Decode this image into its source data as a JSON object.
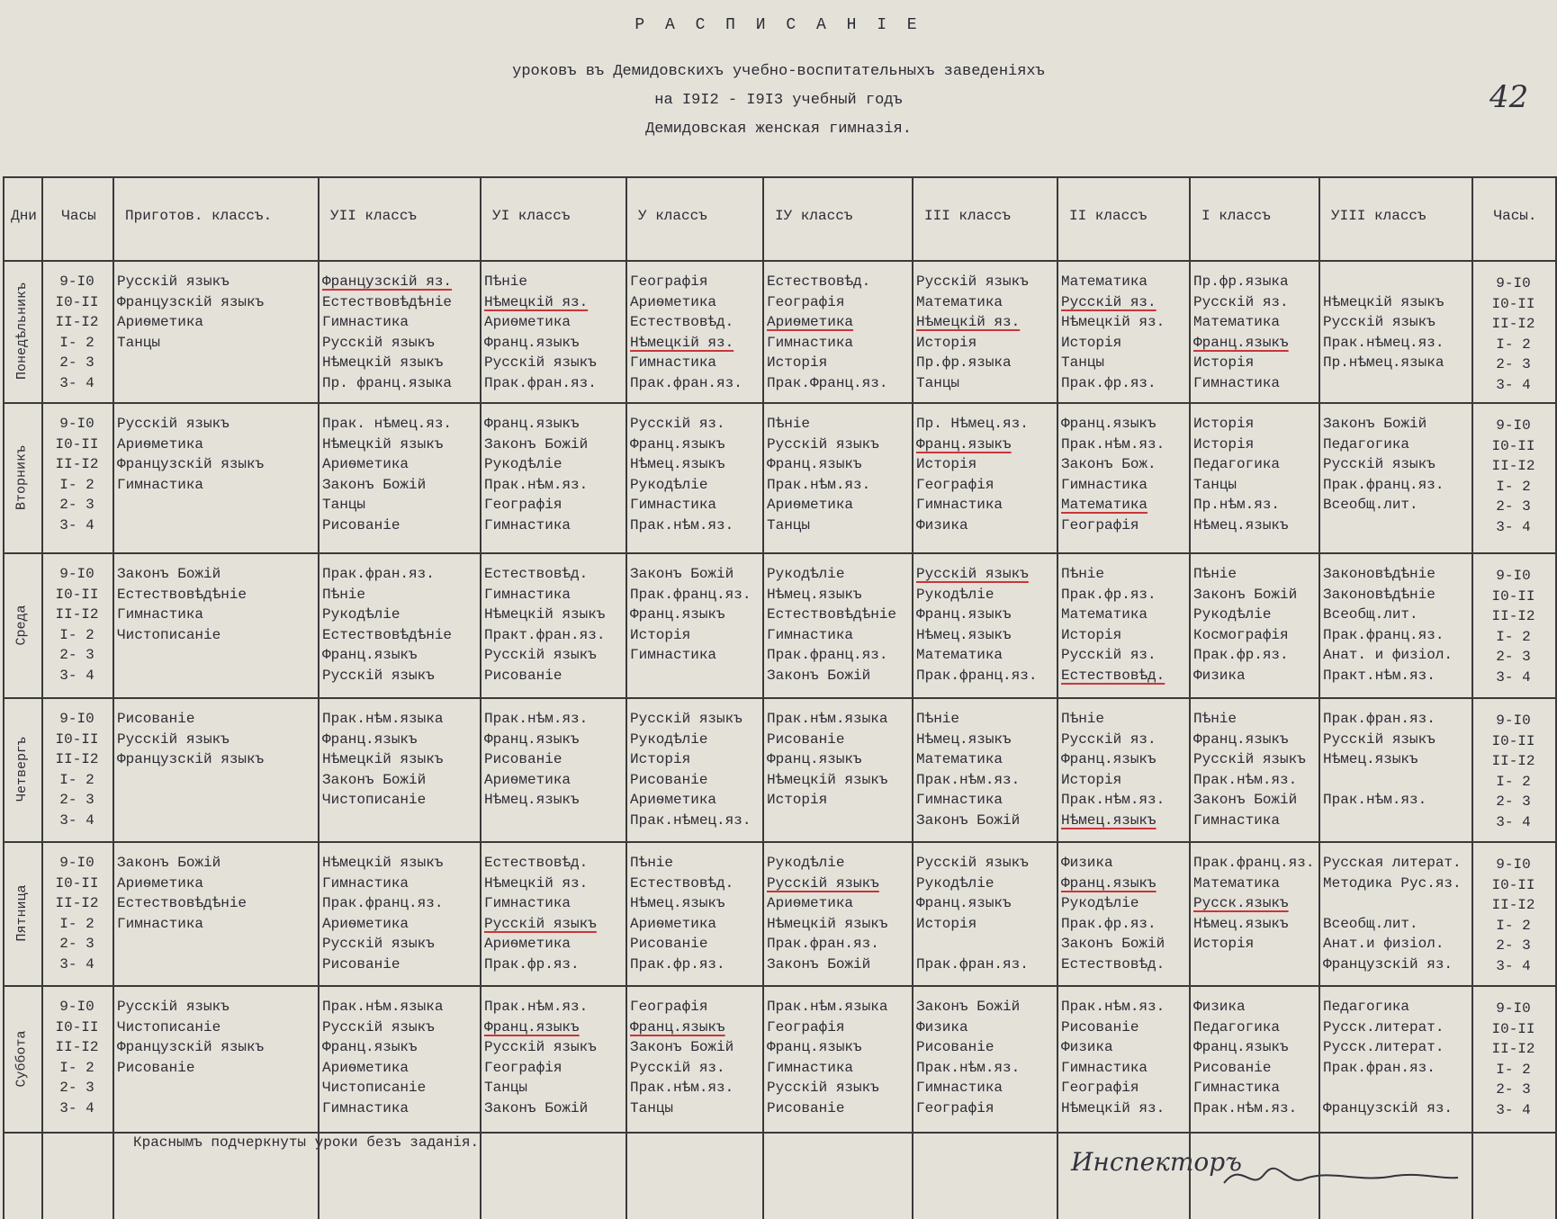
{
  "header": {
    "title": "Р А С П И С А Н І Е",
    "line1": "уроковъ въ Демидовскихъ учебно-воспитательныхъ заведеніяхъ",
    "line2": "на I9I2 - I9I3 учебный годъ",
    "line3": "Демидовская женская гимназія.",
    "page_number": "42"
  },
  "table": {
    "columns": [
      "Дни",
      "Часы",
      "Приготов. классъ.",
      "УII классъ",
      "УI классъ",
      "У классъ",
      "IУ классъ",
      "III классъ",
      "II классъ",
      "I классъ",
      "УIII классъ",
      "Часы."
    ],
    "rows": [
      {
        "day": "Понедѣльникъ",
        "hours": [
          "9-I0",
          "I0-II",
          "II-I2",
          "I- 2",
          "2- 3",
          "3- 4"
        ],
        "cells": [
          [
            "Русскій языкъ",
            "Французскій языкъ",
            "Ариѳметика",
            "Танцы"
          ],
          [
            "Французскій яз.",
            "Естествовѣдѣніе",
            "Гимнастика",
            "Русскій языкъ",
            "Нѣмецкій языкъ",
            "Пр. франц.языка"
          ],
          [
            "Пѣніе",
            "Нѣмецкій яз.",
            "Ариѳметика",
            "Франц.языкъ",
            "Русскій языкъ",
            "Прак.фран.яз."
          ],
          [
            "Географія",
            "Ариѳметика",
            "Естествовѣд.",
            "Нѣмецкій яз.",
            "Гимнастика",
            "Прак.фран.яз."
          ],
          [
            "Естествовѣд.",
            "Географія",
            "Ариѳметика",
            "Гимнастика",
            "Исторія",
            "Прак.Франц.яз."
          ],
          [
            "Русскій языкъ",
            "Математика",
            "Нѣмецкій яз.",
            "Исторія",
            "Пр.фр.языка",
            "Танцы"
          ],
          [
            "Математика",
            "Русскій яз.",
            "Нѣмецкій яз.",
            "Исторія",
            "Танцы",
            "Прак.фр.яз."
          ],
          [
            "Пр.фр.языка",
            "Русскій яз.",
            "Математика",
            "Франц.языкъ",
            "Исторія",
            "Гимнастика"
          ],
          [
            null,
            "Нѣмецкій языкъ",
            "Русскій языкъ",
            "Прак.нѣмец.яз.",
            "Пр.нѣмец.языка"
          ]
        ],
        "underlined": [
          [
            1,
            0
          ],
          [
            2,
            1
          ],
          [
            3,
            3
          ],
          [
            4,
            2
          ],
          [
            5,
            2
          ],
          [
            6,
            1
          ],
          [
            7,
            3
          ]
        ]
      },
      {
        "day": "Вторникъ",
        "hours": [
          "9-I0",
          "I0-II",
          "II-I2",
          "I- 2",
          "2- 3",
          "3- 4"
        ],
        "cells": [
          [
            "Русскій языкъ",
            "Ариѳметика",
            "Французскій языкъ",
            "Гимнастика"
          ],
          [
            "Прак. нѣмец.яз.",
            "Нѣмецкій языкъ",
            "Ариѳметика",
            "Законъ Божій",
            "Танцы",
            "Рисованіе"
          ],
          [
            "Франц.языкъ",
            "Законъ Божій",
            "Рукодѣліе",
            "Прак.нѣм.яз.",
            "Географія",
            "Гимнастика"
          ],
          [
            "Русскій яз.",
            "Франц.языкъ",
            "Нѣмец.языкъ",
            "Рукодѣліе",
            "Гимнастика",
            "Прак.нѣм.яз."
          ],
          [
            "Пѣніе",
            "Русскій языкъ",
            "Франц.языкъ",
            "Прак.нѣм.яз.",
            "Ариѳметика",
            "Танцы"
          ],
          [
            "Пр. Нѣмец.яз.",
            "Франц.языкъ",
            "Исторія",
            "Географія",
            "Гимнастика",
            "Физика"
          ],
          [
            "Франц.языкъ",
            "Прак.нѣм.яз.",
            "Законъ Бож.",
            "Гимнастика",
            "Математика",
            "Географія"
          ],
          [
            "Исторія",
            "Исторія",
            "Педагогика",
            "Танцы",
            "Пр.нѣм.яз.",
            "Нѣмец.языкъ"
          ],
          [
            "Законъ Божій",
            "Педагогика",
            "Русскій языкъ",
            "Прак.франц.яз.",
            "Всеобщ.лит."
          ]
        ],
        "underlined": [
          [
            5,
            1
          ],
          [
            6,
            4
          ]
        ]
      },
      {
        "day": "Среда",
        "hours": [
          "9-I0",
          "I0-II",
          "II-I2",
          "I- 2",
          "2- 3",
          "3- 4"
        ],
        "cells": [
          [
            "Законъ Божій",
            "Естествовѣдѣніе",
            "Гимнастика",
            "Чистописаніе"
          ],
          [
            "Прак.фран.яз.",
            "Пѣніе",
            "Рукодѣліе",
            "Естествовѣдѣніе",
            "Франц.языкъ",
            "Русскій языкъ"
          ],
          [
            "Естествовѣд.",
            "Гимнастика",
            "Нѣмецкій языкъ",
            "Практ.фран.яз.",
            "Русскій языкъ",
            "Рисованіе"
          ],
          [
            "Законъ Божій",
            "Прак.франц.яз.",
            "Франц.языкъ",
            "Исторія",
            "Гимнастика"
          ],
          [
            "Рукодѣліе",
            "Нѣмец.языкъ",
            "Естествовѣдѣніе",
            "Гимнастика",
            "Прак.франц.яз.",
            "Законъ Божій"
          ],
          [
            "Русскій языкъ",
            "Рукодѣліе",
            "Франц.языкъ",
            "Нѣмец.языкъ",
            "Математика",
            "Прак.франц.яз."
          ],
          [
            "Пѣніе",
            "Прак.фр.яз.",
            "Математика",
            "Исторія",
            "Русскій яз.",
            "Естествовѣд."
          ],
          [
            "Пѣніе",
            "Законъ Божій",
            "Рукодѣліе",
            "Космографія",
            "Прак.фр.яз.",
            "Физика"
          ],
          [
            "Законовѣдѣніе",
            "Законовѣдѣніе",
            "Всеобщ.лит.",
            "Прак.франц.яз.",
            "Анат. и физіол.",
            "Практ.нѣм.яз."
          ]
        ],
        "underlined": [
          [
            5,
            0
          ],
          [
            6,
            5
          ]
        ]
      },
      {
        "day": "Четвергъ",
        "hours": [
          "9-I0",
          "I0-II",
          "II-I2",
          "I- 2",
          "2- 3",
          "3- 4"
        ],
        "cells": [
          [
            "Рисованіе",
            "Русскій языкъ",
            "Французскій языкъ"
          ],
          [
            "Прак.нѣм.языка",
            "Франц.языкъ",
            "Нѣмецкій языкъ",
            "Законъ Божій",
            "Чистописаніе"
          ],
          [
            "Прак.нѣм.яз.",
            "Франц.языкъ",
            "Рисованіе",
            "Ариѳметика",
            "Нѣмец.языкъ"
          ],
          [
            "Русскій языкъ",
            "Рукодѣліе",
            "Исторія",
            "Рисованіе",
            "Ариѳметика",
            "Прак.нѣмец.яз."
          ],
          [
            "Прак.нѣм.языка",
            "Рисованіе",
            "Франц.языкъ",
            "Нѣмецкій языкъ",
            "Исторія"
          ],
          [
            "Пѣніе",
            "Нѣмец.языкъ",
            "Математика",
            "Прак.нѣм.яз.",
            "Гимнастика",
            "Законъ Божій"
          ],
          [
            "Пѣніе",
            "Русскій яз.",
            "Франц.языкъ",
            "Исторія",
            "Прак.нѣм.яз.",
            "Нѣмец.языкъ"
          ],
          [
            "Пѣніе",
            "Франц.языкъ",
            "Русскій языкъ",
            "Прак.нѣм.яз.",
            "Законъ Божій",
            "Гимнастика"
          ],
          [
            "Прак.фран.яз.",
            "Русскій языкъ",
            "Нѣмец.языкъ",
            null,
            "Прак.нѣм.яз."
          ]
        ],
        "underlined": [
          [
            6,
            5
          ]
        ]
      },
      {
        "day": "Пятница",
        "hours": [
          "9-I0",
          "I0-II",
          "II-I2",
          "I- 2",
          "2- 3",
          "3- 4"
        ],
        "cells": [
          [
            "Законъ Божій",
            "Ариѳметика",
            "Естествовѣдѣніе",
            "Гимнастика"
          ],
          [
            "Нѣмецкій языкъ",
            "Гимнастика",
            "Прак.франц.яз.",
            "Ариѳметика",
            "Русскій языкъ",
            "Рисованіе"
          ],
          [
            "Естествовѣд.",
            "Нѣмецкій яз.",
            "Гимнастика",
            "Русскій языкъ",
            "Ариѳметика",
            "Прак.фр.яз."
          ],
          [
            "Пѣніе",
            "Естествовѣд.",
            "Нѣмец.языкъ",
            "Ариѳметика",
            "Рисованіе",
            "Прак.фр.яз."
          ],
          [
            "Рукодѣліе",
            "Русскій языкъ",
            "Ариѳметика",
            "Нѣмецкій языкъ",
            "Прак.фран.яз.",
            "Законъ Божій"
          ],
          [
            "Русскій языкъ",
            "Рукодѣліе",
            "Франц.языкъ",
            "Исторія",
            null,
            "Прак.фран.яз."
          ],
          [
            "Физика",
            "Франц.языкъ",
            "Рукодѣліе",
            "Прак.фр.яз.",
            "Законъ Божій",
            "Естествовѣд."
          ],
          [
            "Прак.франц.яз.",
            "Математика",
            "Русск.языкъ",
            "Нѣмец.языкъ",
            "Исторія"
          ],
          [
            "Русская литерат.",
            "Методика Рус.яз.",
            null,
            "Всеобщ.лит.",
            "Анат.и физіол.",
            "Французскій яз."
          ]
        ],
        "underlined": [
          [
            2,
            3
          ],
          [
            4,
            1
          ],
          [
            6,
            1
          ],
          [
            7,
            2
          ]
        ]
      },
      {
        "day": "Суббота",
        "hours": [
          "9-I0",
          "I0-II",
          "II-I2",
          "I- 2",
          "2- 3",
          "3- 4"
        ],
        "cells": [
          [
            "Русскій языкъ",
            "Чистописаніе",
            "Французскій языкъ",
            "Рисованіе"
          ],
          [
            "Прак.нѣм.языка",
            "Русскій языкъ",
            "Франц.языкъ",
            "Ариѳметика",
            "Чистописаніе",
            "Гимнастика"
          ],
          [
            "Прак.нѣм.яз.",
            "Франц.языкъ",
            "Русскій языкъ",
            "Географія",
            "Танцы",
            "Законъ Божій"
          ],
          [
            "Географія",
            "Франц.языкъ",
            "Законъ Божій",
            "Русскій яз.",
            "Прак.нѣм.яз.",
            "Танцы"
          ],
          [
            "Прак.нѣм.языка",
            "Географія",
            "Франц.языкъ",
            "Гимнастика",
            "Русскій языкъ",
            "Рисованіе"
          ],
          [
            "Законъ Божій",
            "Физика",
            "Рисованіе",
            "Прак.нѣм.яз.",
            "Гимнастика",
            "Географія"
          ],
          [
            "Прак.нѣм.яз.",
            "Рисованіе",
            "Физика",
            "Гимнастика",
            "Географія",
            "Нѣмецкій яз."
          ],
          [
            "Физика",
            "Педагогика",
            "Франц.языкъ",
            "Рисованіе",
            "Гимнастика",
            "Прак.нѣм.яз."
          ],
          [
            "Педагогика",
            "Русск.литерат.",
            "Русск.литерат.",
            "Прак.фран.яз.",
            null,
            "Французскій яз."
          ]
        ],
        "underlined": [
          [
            2,
            1
          ],
          [
            3,
            1
          ]
        ]
      }
    ]
  },
  "footer": {
    "note": "Краснымъ подчеркнуты уроки безъ заданія.",
    "signature_title": "Инспекторъ"
  }
}
